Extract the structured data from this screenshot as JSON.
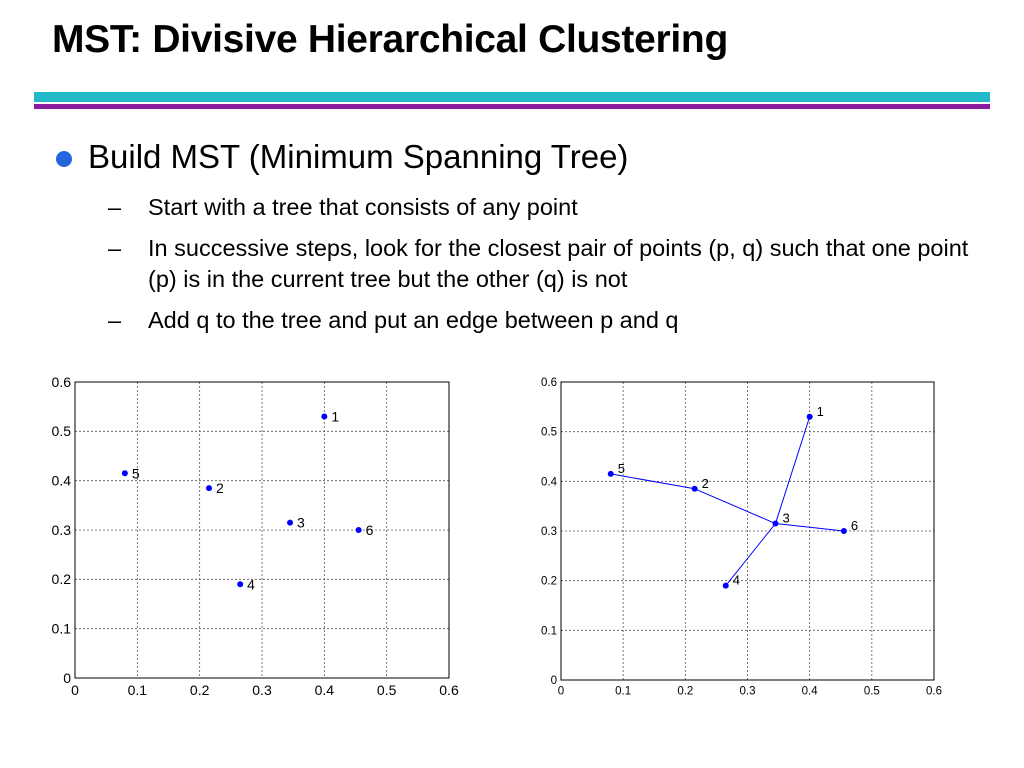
{
  "slide": {
    "title": "MST: Divisive Hierarchical Clustering",
    "bullet": "Build MST (Minimum Spanning Tree)",
    "sub_bullets": [
      "Start with a tree that consists of any point",
      "In successive steps, look for the closest pair of points (p, q)  such that one point (p) is in the current tree but the other (q) is not",
      "Add q to the tree and put an edge between p and q"
    ],
    "dash": "–"
  },
  "colors": {
    "title_rule_top": "#22b8c8",
    "title_rule_bottom": "#8a1aa0",
    "bullet": "#2266dd",
    "points": "#0000ff",
    "edges": "#0000ff"
  },
  "chart_data": [
    {
      "type": "scatter",
      "grid": true,
      "xlim": [
        0,
        0.6
      ],
      "ylim": [
        0,
        0.6
      ],
      "xticks": [
        "0",
        "0.1",
        "0.2",
        "0.3",
        "0.4",
        "0.5",
        "0.6"
      ],
      "yticks": [
        "0",
        "0.1",
        "0.2",
        "0.3",
        "0.4",
        "0.5",
        "0.6"
      ],
      "points": [
        {
          "label": "1",
          "x": 0.4,
          "y": 0.53
        },
        {
          "label": "2",
          "x": 0.215,
          "y": 0.385
        },
        {
          "label": "3",
          "x": 0.345,
          "y": 0.315
        },
        {
          "label": "4",
          "x": 0.265,
          "y": 0.19
        },
        {
          "label": "5",
          "x": 0.08,
          "y": 0.415
        },
        {
          "label": "6",
          "x": 0.455,
          "y": 0.3
        }
      ],
      "edges": []
    },
    {
      "type": "scatter",
      "grid": true,
      "xlim": [
        0,
        0.6
      ],
      "ylim": [
        0,
        0.6
      ],
      "xticks": [
        "0",
        "0.1",
        "0.2",
        "0.3",
        "0.4",
        "0.5",
        "0.6"
      ],
      "yticks": [
        "0",
        "0.1",
        "0.2",
        "0.3",
        "0.4",
        "0.5",
        "0.6"
      ],
      "points": [
        {
          "label": "1",
          "x": 0.4,
          "y": 0.53
        },
        {
          "label": "2",
          "x": 0.215,
          "y": 0.385
        },
        {
          "label": "3",
          "x": 0.345,
          "y": 0.315
        },
        {
          "label": "4",
          "x": 0.265,
          "y": 0.19
        },
        {
          "label": "5",
          "x": 0.08,
          "y": 0.415
        },
        {
          "label": "6",
          "x": 0.455,
          "y": 0.3
        }
      ],
      "edges": [
        [
          "5",
          "2"
        ],
        [
          "2",
          "3"
        ],
        [
          "3",
          "1"
        ],
        [
          "3",
          "6"
        ],
        [
          "3",
          "4"
        ]
      ]
    }
  ]
}
